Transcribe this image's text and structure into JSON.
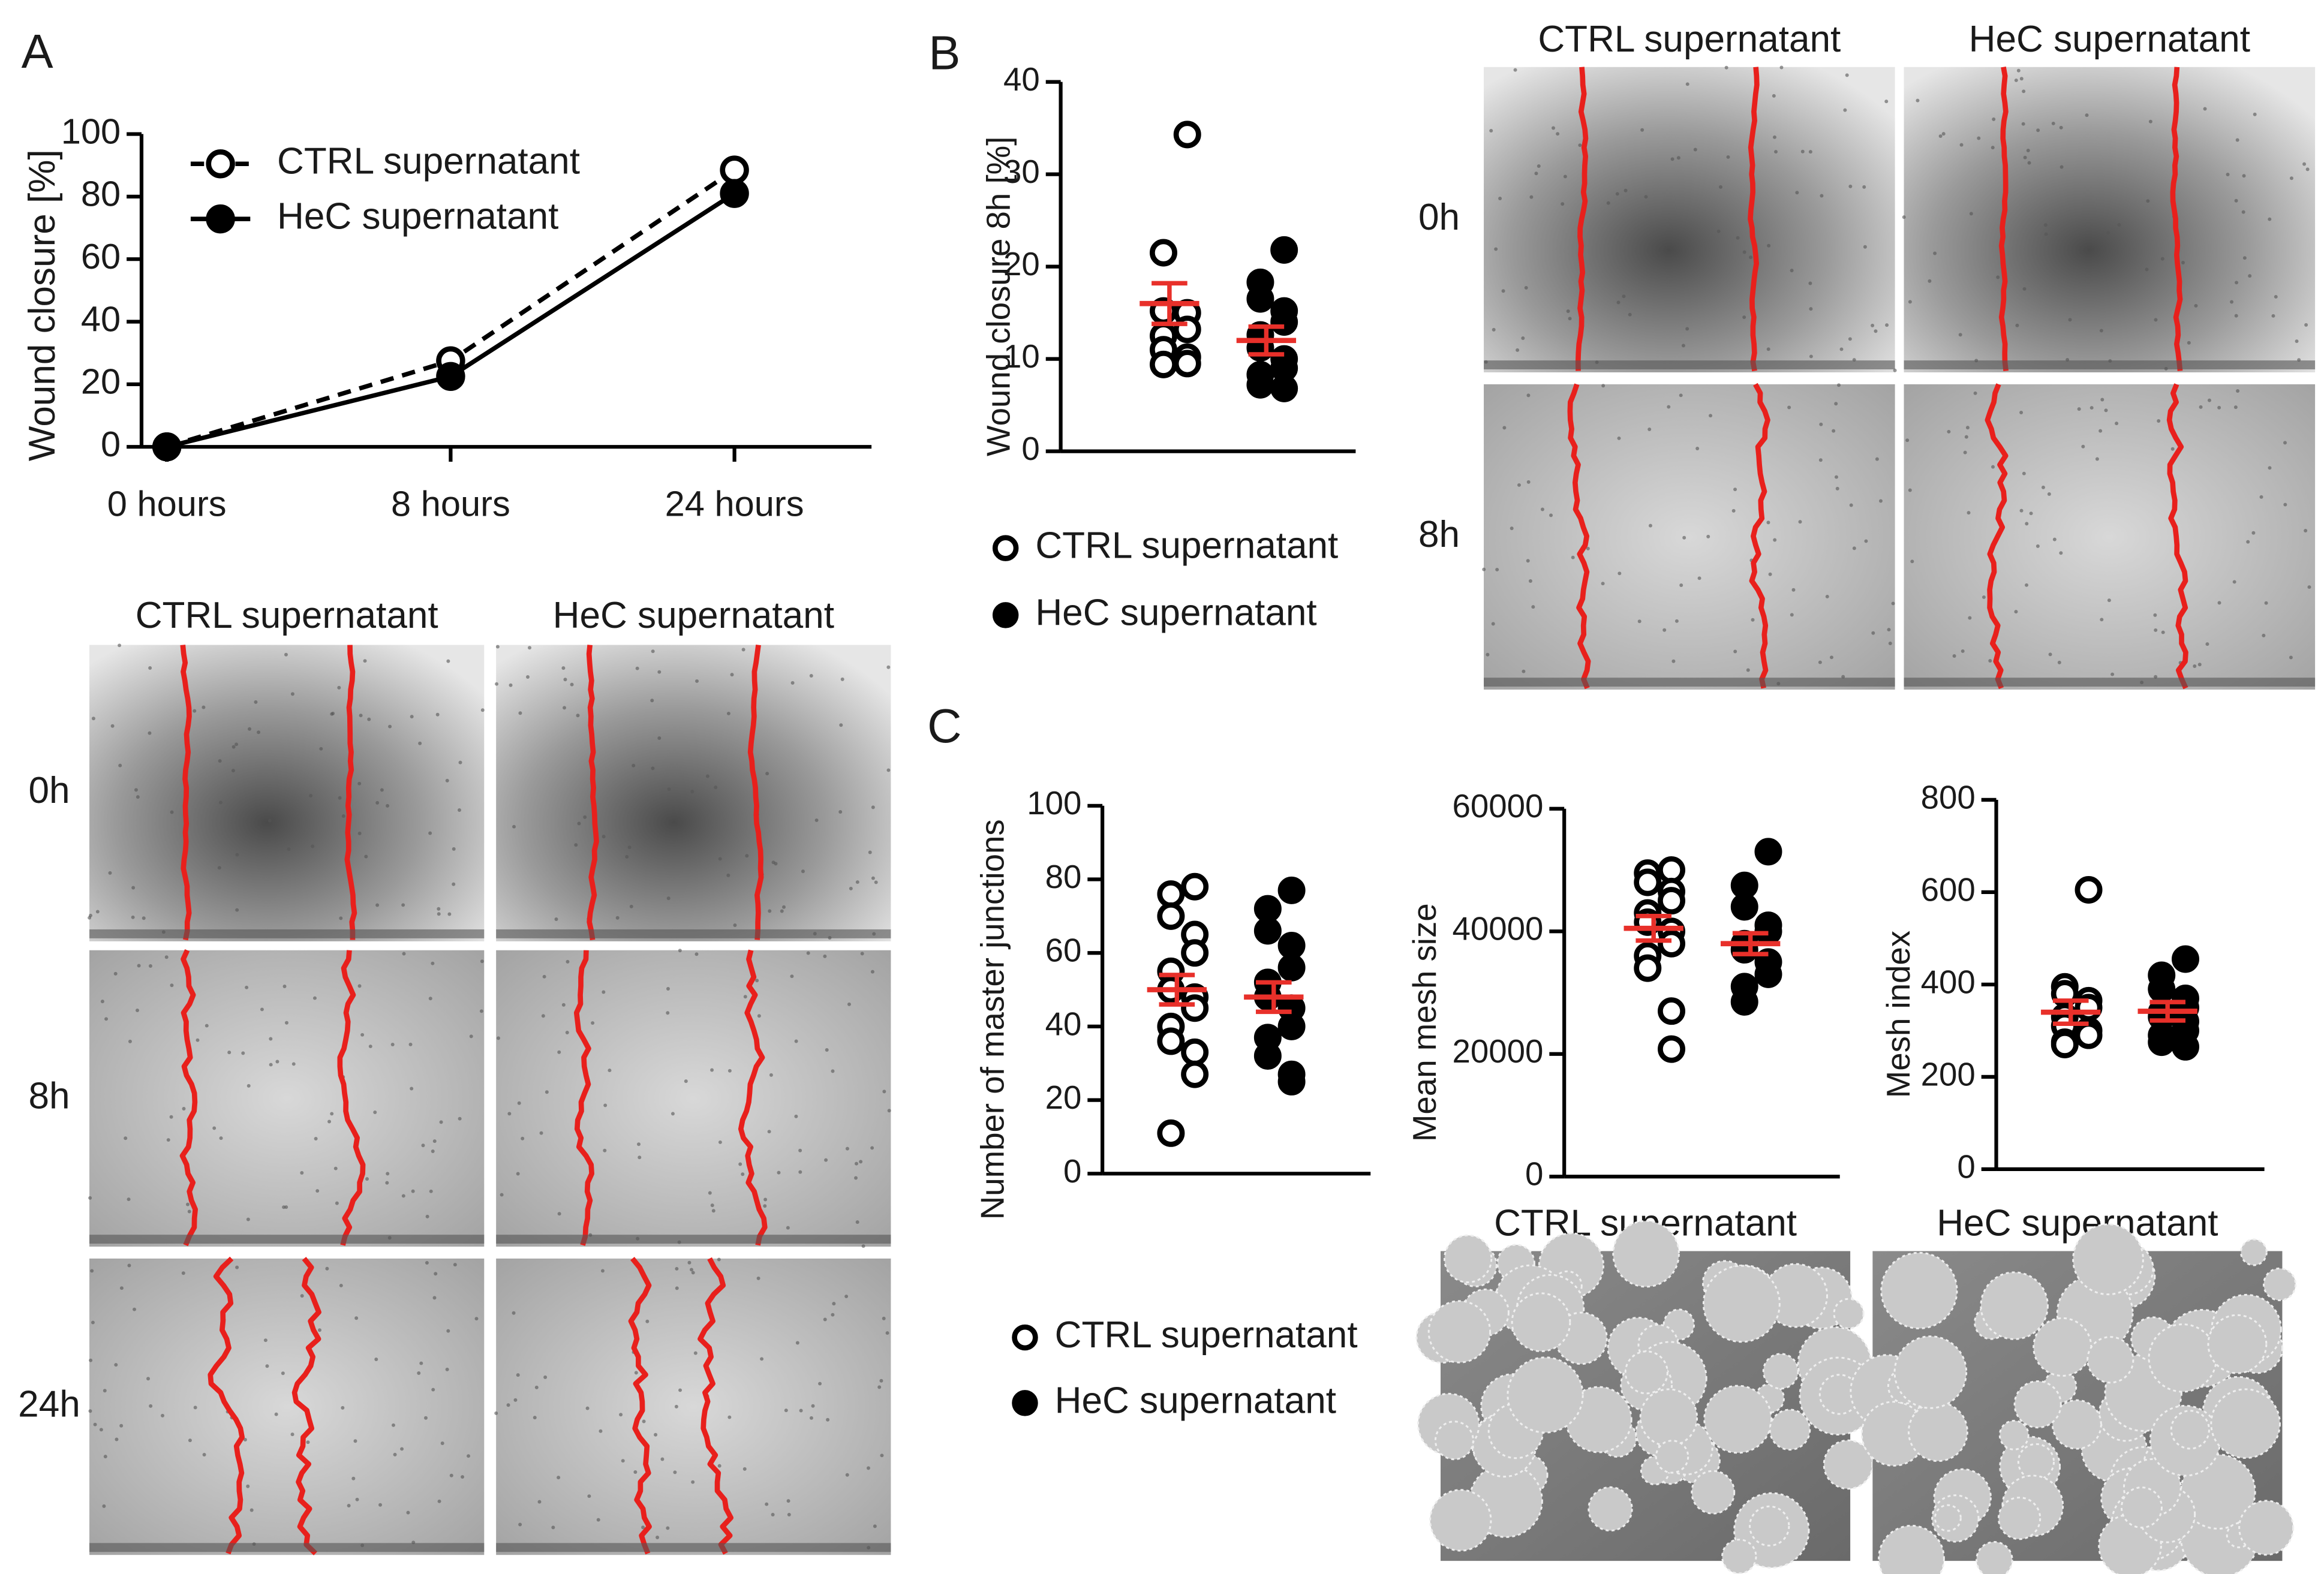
{
  "chart_data": [
    {
      "type": "line",
      "panel": "A",
      "ylabel": "Wound closure [%]",
      "categories": [
        "0 hours",
        "8 hours",
        "24 hours"
      ],
      "ylim": [
        0,
        100
      ],
      "yticks": [
        0,
        20,
        40,
        60,
        80,
        100
      ],
      "series": [
        {
          "name": "CTRL supernatant",
          "color": "#000000",
          "line_style": "dashed",
          "marker": "open",
          "values": [
            0,
            27.5,
            88.5
          ]
        },
        {
          "name": "HeC supernatant",
          "color": "#000000",
          "line_style": "solid",
          "marker": "filled",
          "values": [
            0,
            22.5,
            81
          ]
        }
      ],
      "images": {
        "columns": [
          "CTRL supernatant",
          "HeC supernatant"
        ],
        "rows": [
          "0h",
          "8h",
          "24h"
        ],
        "style": "scratch"
      }
    },
    {
      "type": "dot",
      "panel": "B",
      "mean_color": "#e8302a",
      "series": [
        {
          "name": "CTRL supernatant",
          "color": "#000000",
          "marker": "open"
        },
        {
          "name": "HeC supernatant",
          "color": "#000000",
          "marker": "filled"
        }
      ],
      "subplots": [
        {
          "ylabel": "Wound closure 8h [%]",
          "ylim": [
            0,
            40
          ],
          "yticks": [
            0,
            10,
            20,
            30,
            40
          ],
          "groups": [
            {
              "values": [
                34.3,
                21.5,
                15.2,
                15.0,
                13.2,
                12.5,
                11.0,
                10.2,
                9.5,
                9.4
              ],
              "mean": 16,
              "sem": 2.2
            },
            {
              "values": [
                21.8,
                18.3,
                16.5,
                15.2,
                14.0,
                12.6,
                11.2,
                10.0,
                9.0,
                8.3,
                7.2,
                6.8
              ],
              "mean": 12,
              "sem": 1.5
            }
          ]
        }
      ],
      "images": {
        "columns": [
          "CTRL supernatant",
          "HeC supernatant"
        ],
        "rows": [
          "0h",
          "8h"
        ],
        "style": "scratch"
      }
    },
    {
      "type": "dot",
      "panel": "C",
      "mean_color": "#e8302a",
      "series": [
        {
          "name": "CTRL supernatant",
          "color": "#000000",
          "marker": "open"
        },
        {
          "name": "HeC supernatant",
          "color": "#000000",
          "marker": "filled"
        }
      ],
      "subplots": [
        {
          "ylabel": "Number of master junctions",
          "ylim": [
            0,
            100
          ],
          "yticks": [
            0,
            20,
            40,
            60,
            80,
            100
          ],
          "groups": [
            {
              "values": [
                78,
                76,
                70,
                65,
                60,
                55,
                50,
                48,
                45,
                40,
                36,
                33,
                27,
                11
              ],
              "mean": 50,
              "sem": 4
            },
            {
              "values": [
                77,
                72,
                66,
                62,
                56,
                52,
                48,
                45,
                40,
                37,
                32,
                27,
                25
              ],
              "mean": 48,
              "sem": 4
            }
          ]
        },
        {
          "ylabel": "Mean mesh size",
          "ylim": [
            0,
            60000
          ],
          "yticks": [
            0,
            20000,
            40000,
            60000
          ],
          "groups": [
            {
              "values": [
                50000,
                49500,
                48000,
                46500,
                45000,
                43000,
                41500,
                40000,
                38000,
                36000,
                34000,
                27000,
                20800
              ],
              "mean": 40500,
              "sem": 2000
            },
            {
              "values": [
                53000,
                47500,
                44000,
                41000,
                40000,
                38000,
                37000,
                35000,
                33000,
                31000,
                28500
              ],
              "mean": 38000,
              "sem": 1700
            }
          ]
        },
        {
          "ylabel": "Mesh index",
          "ylim": [
            0,
            800
          ],
          "yticks": [
            0,
            200,
            400,
            600,
            800
          ],
          "groups": [
            {
              "values": [
                605,
                395,
                380,
                365,
                350,
                330,
                310,
                300,
                290,
                275,
                270
              ],
              "mean": 340,
              "sem": 25
            },
            {
              "values": [
                455,
                420,
                390,
                370,
                350,
                340,
                330,
                320,
                300,
                290,
                275,
                265
              ],
              "mean": 342,
              "sem": 20
            }
          ]
        }
      ],
      "images": {
        "columns": [
          "CTRL supernatant",
          "HeC supernatant"
        ],
        "style": "mesh"
      }
    }
  ]
}
